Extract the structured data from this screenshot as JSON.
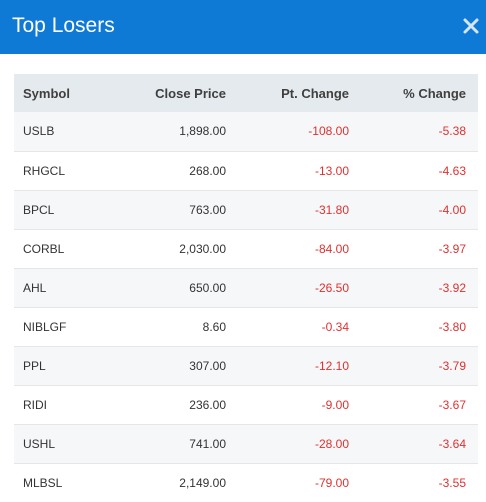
{
  "dialog": {
    "title": "Top Losers"
  },
  "table": {
    "headers": {
      "symbol": "Symbol",
      "close_price": "Close Price",
      "pt_change": "Pt. Change",
      "pct_change": "% Change"
    },
    "rows": [
      {
        "symbol": "USLB",
        "close_price": "1,898.00",
        "pt_change": "-108.00",
        "pct_change": "-5.38"
      },
      {
        "symbol": "RHGCL",
        "close_price": "268.00",
        "pt_change": "-13.00",
        "pct_change": "-4.63"
      },
      {
        "symbol": "BPCL",
        "close_price": "763.00",
        "pt_change": "-31.80",
        "pct_change": "-4.00"
      },
      {
        "symbol": "CORBL",
        "close_price": "2,030.00",
        "pt_change": "-84.00",
        "pct_change": "-3.97"
      },
      {
        "symbol": "AHL",
        "close_price": "650.00",
        "pt_change": "-26.50",
        "pct_change": "-3.92"
      },
      {
        "symbol": "NIBLGF",
        "close_price": "8.60",
        "pt_change": "-0.34",
        "pct_change": "-3.80"
      },
      {
        "symbol": "PPL",
        "close_price": "307.00",
        "pt_change": "-12.10",
        "pct_change": "-3.79"
      },
      {
        "symbol": "RIDI",
        "close_price": "236.00",
        "pt_change": "-9.00",
        "pct_change": "-3.67"
      },
      {
        "symbol": "USHL",
        "close_price": "741.00",
        "pt_change": "-28.00",
        "pct_change": "-3.64"
      },
      {
        "symbol": "MLBSL",
        "close_price": "2,149.00",
        "pt_change": "-79.00",
        "pct_change": "-3.55"
      }
    ]
  },
  "colors": {
    "header_bg": "#0f7ad6",
    "negative": "#e03030",
    "table_header_bg": "#e5eaef"
  },
  "icons": {
    "close": "close-icon"
  }
}
